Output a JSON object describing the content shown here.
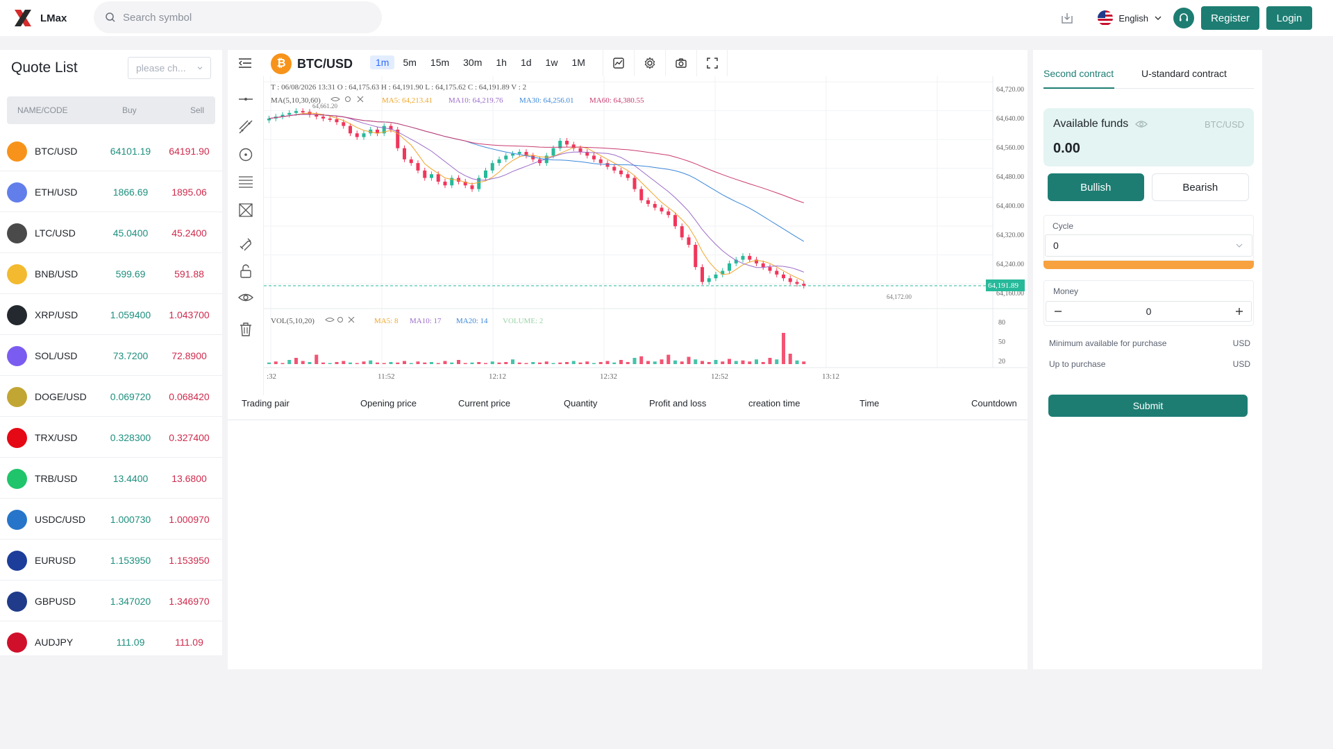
{
  "header": {
    "brand": "LMax",
    "search_placeholder": "Search symbol",
    "language": "English",
    "register_label": "Register",
    "login_label": "Login"
  },
  "quote_list": {
    "title": "Quote List",
    "select_placeholder": "please ch...",
    "columns": [
      "NAME/CODE",
      "Buy",
      "Sell"
    ],
    "rows": [
      {
        "name": "BTC/USD",
        "buy": "64101.19",
        "sell": "64191.90",
        "icon": "bitcoin-icon",
        "color": "#f7931a"
      },
      {
        "name": "ETH/USD",
        "buy": "1866.69",
        "sell": "1895.06",
        "icon": "ethereum-icon",
        "color": "#627eea"
      },
      {
        "name": "LTC/USD",
        "buy": "45.0400",
        "sell": "45.2400",
        "icon": "litecoin-icon",
        "color": "#4a4a4a"
      },
      {
        "name": "BNB/USD",
        "buy": "599.69",
        "sell": "591.88",
        "icon": "bnb-icon",
        "color": "#f3ba2f"
      },
      {
        "name": "XRP/USD",
        "buy": "1.059400",
        "sell": "1.043700",
        "icon": "xrp-icon",
        "color": "#23292f"
      },
      {
        "name": "SOL/USD",
        "buy": "73.7200",
        "sell": "72.8900",
        "icon": "solana-icon",
        "color": "#7b5cf0"
      },
      {
        "name": "DOGE/USD",
        "buy": "0.069720",
        "sell": "0.068420",
        "icon": "dogecoin-icon",
        "color": "#c2a633"
      },
      {
        "name": "TRX/USD",
        "buy": "0.328300",
        "sell": "0.327400",
        "icon": "tron-icon",
        "color": "#e50915"
      },
      {
        "name": "TRB/USD",
        "buy": "13.4400",
        "sell": "13.6800",
        "icon": "tellor-icon",
        "color": "#20c46b"
      },
      {
        "name": "USDC/USD",
        "buy": "1.000730",
        "sell": "1.000970",
        "icon": "usdc-icon",
        "color": "#2775ca"
      },
      {
        "name": "EURUSD",
        "buy": "1.153950",
        "sell": "1.153950",
        "icon": "eu-flag-icon",
        "color": "#1d3d9b"
      },
      {
        "name": "GBPUSD",
        "buy": "1.347020",
        "sell": "1.346970",
        "icon": "uk-flag-icon",
        "color": "#1f3b8a"
      },
      {
        "name": "AUDJPY",
        "buy": "111.09",
        "sell": "111.09",
        "icon": "aud-jpy-flag-icon",
        "color": "#d0102b"
      }
    ]
  },
  "chart": {
    "symbol": "BTC/USD",
    "timeframes": [
      "1m",
      "5m",
      "15m",
      "30m",
      "1h",
      "1d",
      "1w",
      "1M"
    ],
    "active_timeframe": "1m",
    "ohlc_line": "T : 06/08/2026 13:31    O : 64,175.63    H : 64,191.90    L : 64,175.62    C : 64,191.89    V : 2",
    "ma_label": "MA(5,10,30,60)",
    "ma5": "MA5: 64,213.41",
    "ma10": "MA10: 64,219.76",
    "ma30": "MA30: 64,256.01",
    "ma60": "MA60: 64,380.55",
    "high_mark": "64,661.20",
    "low_mark": "64,172.00",
    "current_price": "64,191.89",
    "vol_label": "VOL(5,10,20)",
    "vol_ma5": "MA5: 8",
    "vol_ma10": "MA10: 17",
    "vol_ma20": "MA20: 14",
    "volume": "VOLUME: 2",
    "y_ticks": [
      "64,720.00",
      "64,640.00",
      "64,560.00",
      "64,480.00",
      "64,400.00",
      "64,320.00",
      "64,240.00",
      "64,160.00"
    ],
    "vol_ticks": [
      "80",
      "50",
      "20"
    ],
    "x_ticks": [
      ":32",
      "11:52",
      "12:12",
      "12:32",
      "12:52",
      "13:12"
    ],
    "colors": {
      "up": "#26b99a",
      "down": "#f0365b",
      "ma5": "#f0a52a",
      "ma10": "#9a6bc9",
      "ma30": "#3a87d9",
      "ma60": "#c93a6f"
    }
  },
  "orders": {
    "columns": [
      "Trading pair",
      "Opening price",
      "Current price",
      "Quantity",
      "Profit and loss",
      "creation time",
      "Time",
      "Countdown"
    ]
  },
  "trade": {
    "tab_second": "Second contract",
    "tab_ustandard": "U-standard contract",
    "funds_label": "Available funds",
    "funds_currency": "BTC/USD",
    "funds_value": "0.00",
    "bullish": "Bullish",
    "bearish": "Bearish",
    "cycle_label": "Cycle",
    "cycle_value": "0",
    "money_label": "Money",
    "money_value": "0",
    "min_label": "Minimum available for purchase",
    "min_unit": "USD",
    "up_label": "Up to purchase",
    "up_unit": "USD",
    "submit": "Submit"
  }
}
